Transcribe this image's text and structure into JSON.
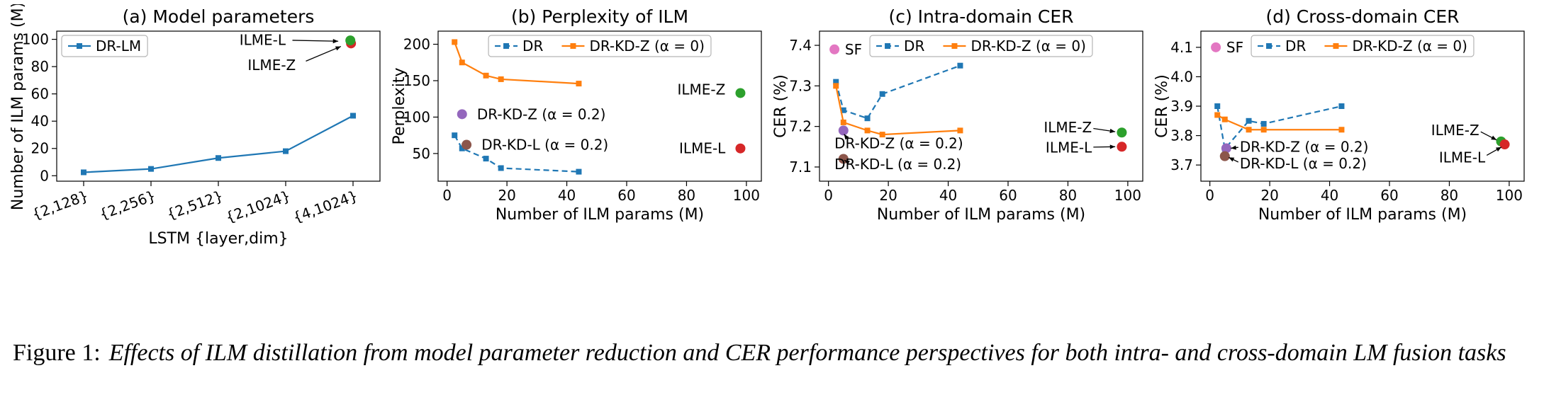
{
  "caption": {
    "prefix": "Figure 1:",
    "text": "Effects of ILM distillation from model parameter reduction and CER performance perspectives for both intra- and cross-domain LM fusion tasks"
  },
  "colors": {
    "blue": "#1f77b4",
    "orange": "#ff7f0e",
    "green": "#2ca02c",
    "red": "#d62728",
    "purple": "#9467bd",
    "brown": "#8c564b",
    "pink": "#e377c2"
  },
  "chart_data": [
    {
      "type": "line",
      "title": "(a) Model parameters",
      "xlabel": "LSTM {layer,dim}",
      "ylabel": "Number of ILM params (M)",
      "rotate_xticks": true,
      "xlim": [
        -0.4,
        4.4
      ],
      "ylim": [
        -4,
        106
      ],
      "xticks": [
        0,
        1,
        2,
        3,
        4
      ],
      "xtick_labels": [
        "{2,128}",
        "{2,256}",
        "{2,512}",
        "{2,1024}",
        "{4,1024}"
      ],
      "yticks": [
        0,
        20,
        40,
        60,
        80,
        100
      ],
      "ytick_labels": [
        "0",
        "20",
        "40",
        "60",
        "80",
        "100"
      ],
      "series": [
        {
          "name": "DR-LM",
          "color": "#1f77b4",
          "dash": false,
          "x": [
            0,
            1,
            2,
            3,
            4
          ],
          "y": [
            2.5,
            5,
            13,
            18,
            44
          ]
        }
      ],
      "points": [
        {
          "name": "ILME-L",
          "color": "#d62728",
          "x": 3.97,
          "y": 97.0
        },
        {
          "name": "ILME-Z",
          "color": "#2ca02c",
          "x": 3.96,
          "y": 99.2
        }
      ],
      "annotations": [
        {
          "text": "ILME-L",
          "x": 3.0,
          "y": 99.5,
          "anchor": "end",
          "arrow": [
            [
              3.1,
              99.3
            ],
            [
              3.78,
              98.6
            ]
          ]
        },
        {
          "text": "ILME-Z",
          "x": 3.15,
          "y": 81,
          "anchor": "end",
          "arrow": [
            [
              3.3,
              84
            ],
            [
              3.82,
              94.8
            ]
          ]
        }
      ],
      "legend": {
        "pos": "nw",
        "entries": [
          {
            "label": "DR-LM",
            "color": "#1f77b4",
            "dash": false
          }
        ]
      }
    },
    {
      "type": "line",
      "title": "(b) Perplexity of ILM",
      "xlabel": "Number of ILM params (M)",
      "ylabel": "Perplexity",
      "xlim": [
        -3,
        105
      ],
      "ylim": [
        12,
        218
      ],
      "xticks": [
        0,
        20,
        40,
        60,
        80,
        100
      ],
      "xtick_labels": [
        "0",
        "20",
        "40",
        "60",
        "80",
        "100"
      ],
      "yticks": [
        50,
        100,
        150,
        200
      ],
      "ytick_labels": [
        "50",
        "100",
        "150",
        "200"
      ],
      "series": [
        {
          "name": "DR",
          "color": "#1f77b4",
          "dash": true,
          "x": [
            2.5,
            5,
            13,
            18,
            44
          ],
          "y": [
            75,
            57,
            43,
            30,
            25
          ]
        },
        {
          "name": "DR-KD-Z (α = 0)",
          "color": "#ff7f0e",
          "dash": false,
          "x": [
            2.5,
            5,
            13,
            18,
            44
          ],
          "y": [
            203,
            175,
            157,
            152,
            146
          ]
        }
      ],
      "points": [
        {
          "name": "DR-KD-Z (α = 0.2)",
          "color": "#9467bd",
          "x": 5,
          "y": 104
        },
        {
          "name": "DR-KD-L (α = 0.2)",
          "color": "#8c564b",
          "x": 6.5,
          "y": 62
        },
        {
          "name": "ILME-Z",
          "color": "#2ca02c",
          "x": 98,
          "y": 133
        },
        {
          "name": "ILME-L",
          "color": "#d62728",
          "x": 98,
          "y": 57
        }
      ],
      "annotations": [
        {
          "text": "DR-KD-Z (α = 0.2)",
          "x": 10,
          "y": 104,
          "anchor": "start"
        },
        {
          "text": "DR-KD-L (α = 0.2)",
          "x": 11.5,
          "y": 62,
          "anchor": "start"
        },
        {
          "text": "ILME-Z",
          "x": 93,
          "y": 138,
          "anchor": "end"
        },
        {
          "text": "ILME-L",
          "x": 93,
          "y": 57,
          "anchor": "end"
        }
      ],
      "legend": {
        "pos": "n",
        "entries": [
          {
            "label": "DR",
            "color": "#1f77b4",
            "dash": true
          },
          {
            "label": "DR-KD-Z (α = 0)",
            "color": "#ff7f0e",
            "dash": false
          }
        ]
      }
    },
    {
      "type": "line",
      "title": "(c) Intra-domain CER",
      "xlabel": "Number of ILM params (M)",
      "ylabel": "CER (%)",
      "xlim": [
        -3,
        105
      ],
      "ylim": [
        7.065,
        7.435
      ],
      "xticks": [
        0,
        20,
        40,
        60,
        80,
        100
      ],
      "xtick_labels": [
        "0",
        "20",
        "40",
        "60",
        "80",
        "100"
      ],
      "yticks": [
        7.1,
        7.2,
        7.3,
        7.4
      ],
      "ytick_labels": [
        "7.1",
        "7.2",
        "7.3",
        "7.4"
      ],
      "series": [
        {
          "name": "DR",
          "color": "#1f77b4",
          "dash": true,
          "x": [
            2.5,
            5,
            13,
            18,
            44
          ],
          "y": [
            7.31,
            7.24,
            7.22,
            7.28,
            7.35
          ]
        },
        {
          "name": "DR-KD-Z (α = 0)",
          "color": "#ff7f0e",
          "dash": false,
          "x": [
            2.5,
            5,
            13,
            18,
            44
          ],
          "y": [
            7.3,
            7.21,
            7.19,
            7.18,
            7.19
          ]
        }
      ],
      "points": [
        {
          "name": "SF",
          "color": "#e377c2",
          "x": 2,
          "y": 7.39
        },
        {
          "name": "DR-KD-Z (α = 0.2)",
          "color": "#9467bd",
          "x": 5,
          "y": 7.19
        },
        {
          "name": "DR-KD-L (α = 0.2)",
          "color": "#8c564b",
          "x": 5,
          "y": 7.12
        },
        {
          "name": "ILME-Z",
          "color": "#2ca02c",
          "x": 98,
          "y": 7.185
        },
        {
          "name": "ILME-L",
          "color": "#d62728",
          "x": 98,
          "y": 7.15
        }
      ],
      "annotations": [
        {
          "text": "SF",
          "x": 5.5,
          "y": 7.39,
          "anchor": "start"
        },
        {
          "text": "DR-KD-Z (α = 0.2)",
          "x": 2,
          "y": 7.158,
          "anchor": "start",
          "arrow": [
            [
              6.5,
              7.168
            ],
            [
              5.2,
              7.181
            ]
          ]
        },
        {
          "text": "DR-KD-L (α = 0.2)",
          "x": 2,
          "y": 7.107,
          "anchor": "start",
          "arrow": [
            [
              6.2,
              7.113
            ],
            [
              5.3,
              7.117
            ]
          ]
        },
        {
          "text": "ILME-Z",
          "x": 88,
          "y": 7.198,
          "anchor": "end",
          "arrow": [
            [
              88.5,
              7.195
            ],
            [
              95.8,
              7.187
            ]
          ]
        },
        {
          "text": "ILME-L",
          "x": 88,
          "y": 7.148,
          "anchor": "end",
          "arrow": [
            [
              88.5,
              7.149
            ],
            [
              95.8,
              7.15
            ]
          ]
        }
      ],
      "legend": {
        "pos": "n",
        "entries": [
          {
            "label": "DR",
            "color": "#1f77b4",
            "dash": true
          },
          {
            "label": "DR-KD-Z (α = 0)",
            "color": "#ff7f0e",
            "dash": false
          }
        ]
      }
    },
    {
      "type": "line",
      "title": "(d) Cross-domain CER",
      "xlabel": "Number of ILM params (M)",
      "ylabel": "CER (%)",
      "xlim": [
        -3,
        105
      ],
      "ylim": [
        3.645,
        4.155
      ],
      "xticks": [
        0,
        20,
        40,
        60,
        80,
        100
      ],
      "xtick_labels": [
        "0",
        "20",
        "40",
        "60",
        "80",
        "100"
      ],
      "yticks": [
        3.7,
        3.8,
        3.9,
        4.0,
        4.1
      ],
      "ytick_labels": [
        "3.7",
        "3.8",
        "3.9",
        "4.0",
        "4.1"
      ],
      "series": [
        {
          "name": "DR",
          "color": "#1f77b4",
          "dash": true,
          "x": [
            2.5,
            5,
            13,
            18,
            44
          ],
          "y": [
            3.9,
            3.755,
            3.85,
            3.84,
            3.9
          ]
        },
        {
          "name": "DR-KD-Z (α = 0)",
          "color": "#ff7f0e",
          "dash": false,
          "x": [
            2.5,
            5,
            13,
            18,
            44
          ],
          "y": [
            3.87,
            3.855,
            3.82,
            3.82,
            3.82
          ]
        }
      ],
      "points": [
        {
          "name": "SF",
          "color": "#e377c2",
          "x": 2,
          "y": 4.1
        },
        {
          "name": "DR-KD-Z (α = 0.2)",
          "color": "#9467bd",
          "x": 5.5,
          "y": 3.757
        },
        {
          "name": "DR-KD-L (α = 0.2)",
          "color": "#8c564b",
          "x": 5,
          "y": 3.73
        },
        {
          "name": "ILME-Z",
          "color": "#2ca02c",
          "x": 97.3,
          "y": 3.78
        },
        {
          "name": "ILME-L",
          "color": "#d62728",
          "x": 98.5,
          "y": 3.77
        }
      ],
      "annotations": [
        {
          "text": "SF",
          "x": 5.5,
          "y": 4.1,
          "anchor": "start"
        },
        {
          "text": "DR-KD-Z (α = 0.2)",
          "x": 10,
          "y": 3.762,
          "anchor": "start",
          "arrow": [
            [
              9.5,
              3.76
            ],
            [
              7.0,
              3.757
            ]
          ]
        },
        {
          "text": "DR-KD-L (α = 0.2)",
          "x": 10,
          "y": 3.705,
          "anchor": "start",
          "arrow": [
            [
              9.5,
              3.71
            ],
            [
              6.3,
              3.726
            ]
          ]
        },
        {
          "text": "ILME-Z",
          "x": 90,
          "y": 3.818,
          "anchor": "end",
          "arrow": [
            [
              90.5,
              3.813
            ],
            [
              95.8,
              3.785
            ]
          ]
        },
        {
          "text": "ILME-L",
          "x": 92,
          "y": 3.726,
          "anchor": "end",
          "arrow": [
            [
              92.5,
              3.733
            ],
            [
              97.4,
              3.761
            ]
          ]
        }
      ],
      "legend": {
        "pos": "n",
        "entries": [
          {
            "label": "DR",
            "color": "#1f77b4",
            "dash": true
          },
          {
            "label": "DR-KD-Z (α = 0)",
            "color": "#ff7f0e",
            "dash": false
          }
        ]
      }
    }
  ]
}
